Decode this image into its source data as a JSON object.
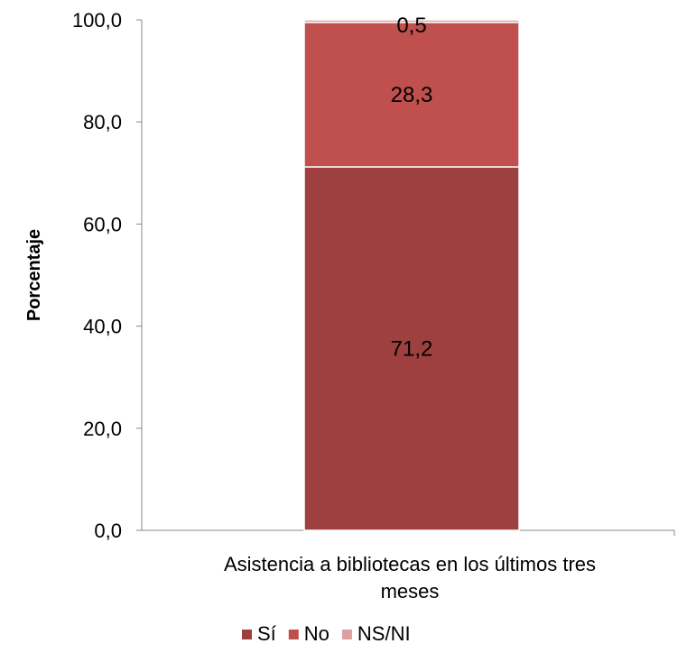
{
  "chart_data": {
    "type": "bar",
    "stacked": true,
    "categories": [
      "Asistencia a bibliotecas en los últimos tres meses"
    ],
    "category_label_lines": [
      "Asistencia a bibliotecas en los últimos tres",
      "meses"
    ],
    "series": [
      {
        "name": "Sí",
        "values": [
          71.2
        ],
        "label": "71,2",
        "color": "#9e4040"
      },
      {
        "name": "No",
        "values": [
          28.3
        ],
        "label": "28,3",
        "color": "#c0504d"
      },
      {
        "name": "NS/NI",
        "values": [
          0.5
        ],
        "label": "0,5",
        "color": "#dda0a0"
      }
    ],
    "ylabel": "Porcentaje",
    "xlabel": "",
    "ylim": [
      0,
      100
    ],
    "yticks": [
      "0,0",
      "20,0",
      "40,0",
      "60,0",
      "80,0",
      "100,0"
    ],
    "grid": false,
    "legend": "bottom"
  }
}
